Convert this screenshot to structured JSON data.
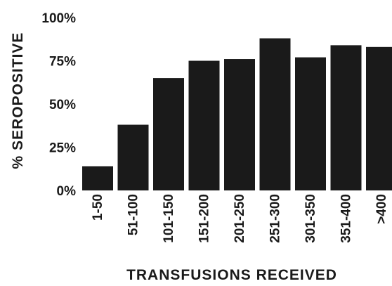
{
  "chart_data": {
    "type": "bar",
    "categories": [
      "1-50",
      "51-100",
      "101-150",
      "151-200",
      "201-250",
      "251-300",
      "301-350",
      "351-400",
      ">400"
    ],
    "values": [
      14,
      38,
      65,
      75,
      76,
      88,
      77,
      84,
      83
    ],
    "ylim": [
      0,
      100
    ],
    "yticks": [
      0,
      25,
      50,
      75,
      100
    ],
    "ytick_labels": [
      "0%",
      "25%",
      "50%",
      "75%",
      "100%"
    ],
    "xlabel": "TRANSFUSIONS RECEIVED",
    "ylabel": "% SEROPOSITIVE",
    "grid": false,
    "legend": "none",
    "bar_color": "#1a1a1a"
  }
}
